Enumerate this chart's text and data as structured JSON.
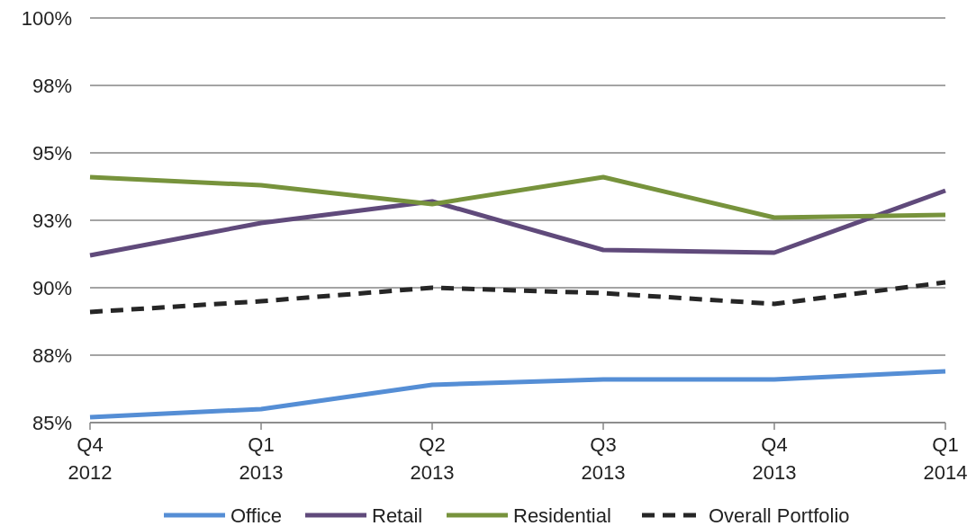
{
  "chart_data": {
    "type": "line",
    "categories": [
      "Q4\n2012",
      "Q1\n2013",
      "Q2\n2013",
      "Q3\n2013",
      "Q4\n2013",
      "Q1\n2014"
    ],
    "series": [
      {
        "name": "Office",
        "color": "#558ed5",
        "values": [
          85.2,
          85.5,
          86.4,
          86.6,
          86.6,
          86.9
        ]
      },
      {
        "name": "Retail",
        "color": "#604a7b",
        "values": [
          91.2,
          92.4,
          93.2,
          91.4,
          91.3,
          93.6
        ]
      },
      {
        "name": "Residential",
        "color": "#77933c",
        "values": [
          94.1,
          93.8,
          93.1,
          94.1,
          92.6,
          92.7
        ]
      },
      {
        "name": "Overall Portfolio",
        "color": "#262626",
        "values": [
          89.1,
          89.5,
          90.0,
          89.8,
          89.4,
          90.2
        ],
        "line_style": "dashed"
      }
    ],
    "ylim": [
      85,
      100
    ],
    "yticks": [
      {
        "value": 85,
        "label": "85%"
      },
      {
        "value": 87.5,
        "label": "88%"
      },
      {
        "value": 90,
        "label": "90%"
      },
      {
        "value": 92.5,
        "label": "93%"
      },
      {
        "value": 95,
        "label": "95%"
      },
      {
        "value": 97.5,
        "label": "98%"
      },
      {
        "value": 100,
        "label": "100%"
      }
    ],
    "grid": "y",
    "legend": "bottom",
    "marker": "none"
  }
}
